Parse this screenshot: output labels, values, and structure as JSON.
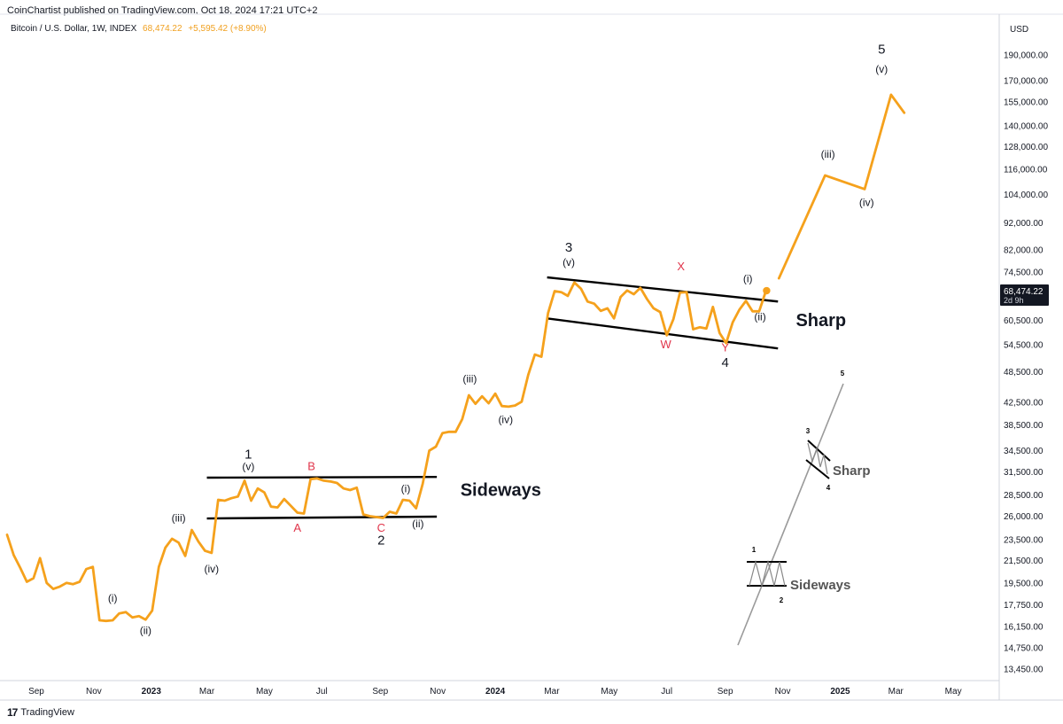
{
  "header": {
    "published": "CoinChartist published on TradingView.com, Oct 18, 2024 17:21 UTC+2",
    "symbol": "Bitcoin / U.S. Dollar, 1W, INDEX",
    "price": "68,474.22",
    "change": "+5,595.42 (+8.90%)"
  },
  "footer": {
    "brand": "TradingView",
    "brand_mark": "17"
  },
  "colors": {
    "price_line": "#f5a11c",
    "wave_red": "#e0344a",
    "ink": "#131722"
  },
  "chart_data": {
    "type": "line",
    "y_scale": "log",
    "y_axis_title": "USD",
    "ylim": [
      12800,
      205000
    ],
    "xlim": [
      "2022-08-01",
      "2025-06-15"
    ],
    "y_ticks": [
      13450,
      14750,
      16150,
      17750,
      19500,
      21500,
      23500,
      26000,
      28500,
      31500,
      34500,
      38500,
      42500,
      48500,
      54500,
      60500,
      74500,
      82000,
      92000,
      104000,
      116000,
      128000,
      140000,
      155000,
      170000,
      190000
    ],
    "x_ticks": [
      {
        "date": "2022-09-01",
        "label": "Sep"
      },
      {
        "date": "2022-11-01",
        "label": "Nov"
      },
      {
        "date": "2023-01-01",
        "label": "2023"
      },
      {
        "date": "2023-03-01",
        "label": "Mar"
      },
      {
        "date": "2023-05-01",
        "label": "May"
      },
      {
        "date": "2023-07-01",
        "label": "Jul"
      },
      {
        "date": "2023-09-01",
        "label": "Sep"
      },
      {
        "date": "2023-11-01",
        "label": "Nov"
      },
      {
        "date": "2024-01-01",
        "label": "2024"
      },
      {
        "date": "2024-03-01",
        "label": "Mar"
      },
      {
        "date": "2024-05-01",
        "label": "May"
      },
      {
        "date": "2024-07-01",
        "label": "Jul"
      },
      {
        "date": "2024-09-01",
        "label": "Sep"
      },
      {
        "date": "2024-11-01",
        "label": "Nov"
      },
      {
        "date": "2025-01-01",
        "label": "2025"
      },
      {
        "date": "2025-03-01",
        "label": "Mar"
      },
      {
        "date": "2025-05-01",
        "label": "May"
      }
    ],
    "last_price_label": "68,474.22",
    "last_price_countdown": "2d 9h",
    "series": [
      {
        "role": "price",
        "points": [
          [
            "2022-08-01",
            24000
          ],
          [
            "2022-08-08",
            22000
          ],
          [
            "2022-08-15",
            20800
          ],
          [
            "2022-08-22",
            19600
          ],
          [
            "2022-08-29",
            19900
          ],
          [
            "2022-09-05",
            21700
          ],
          [
            "2022-09-12",
            19500
          ],
          [
            "2022-09-19",
            19000
          ],
          [
            "2022-09-26",
            19200
          ],
          [
            "2022-10-03",
            19500
          ],
          [
            "2022-10-10",
            19400
          ],
          [
            "2022-10-17",
            19600
          ],
          [
            "2022-10-24",
            20700
          ],
          [
            "2022-10-31",
            20900
          ],
          [
            "2022-11-07",
            16600
          ],
          [
            "2022-11-14",
            16550
          ],
          [
            "2022-11-21",
            16600
          ],
          [
            "2022-11-28",
            17100
          ],
          [
            "2022-12-05",
            17200
          ],
          [
            "2022-12-12",
            16800
          ],
          [
            "2022-12-19",
            16900
          ],
          [
            "2022-12-26",
            16650
          ],
          [
            "2023-01-02",
            17300
          ],
          [
            "2023-01-09",
            20900
          ],
          [
            "2023-01-16",
            22700
          ],
          [
            "2023-01-23",
            23600
          ],
          [
            "2023-01-30",
            23200
          ],
          [
            "2023-02-06",
            21900
          ],
          [
            "2023-02-13",
            24500
          ],
          [
            "2023-02-20",
            23300
          ],
          [
            "2023-02-27",
            22400
          ],
          [
            "2023-03-06",
            22200
          ],
          [
            "2023-03-13",
            27900
          ],
          [
            "2023-03-20",
            27800
          ],
          [
            "2023-03-27",
            28100
          ],
          [
            "2023-04-03",
            28300
          ],
          [
            "2023-04-10",
            30300
          ],
          [
            "2023-04-17",
            27800
          ],
          [
            "2023-04-24",
            29300
          ],
          [
            "2023-05-01",
            28800
          ],
          [
            "2023-05-08",
            27100
          ],
          [
            "2023-05-15",
            27000
          ],
          [
            "2023-05-22",
            28000
          ],
          [
            "2023-05-29",
            27200
          ],
          [
            "2023-06-05",
            26400
          ],
          [
            "2023-06-12",
            26300
          ],
          [
            "2023-06-19",
            30500
          ],
          [
            "2023-06-26",
            30600
          ],
          [
            "2023-07-03",
            30300
          ],
          [
            "2023-07-10",
            30200
          ],
          [
            "2023-07-17",
            30000
          ],
          [
            "2023-07-24",
            29300
          ],
          [
            "2023-07-31",
            29100
          ],
          [
            "2023-08-07",
            29400
          ],
          [
            "2023-08-14",
            26200
          ],
          [
            "2023-08-21",
            26000
          ],
          [
            "2023-08-28",
            25900
          ],
          [
            "2023-09-04",
            25800
          ],
          [
            "2023-09-11",
            26500
          ],
          [
            "2023-09-18",
            26300
          ],
          [
            "2023-09-25",
            27900
          ],
          [
            "2023-10-02",
            27800
          ],
          [
            "2023-10-09",
            26900
          ],
          [
            "2023-10-16",
            29900
          ],
          [
            "2023-10-23",
            34500
          ],
          [
            "2023-10-30",
            35100
          ],
          [
            "2023-11-06",
            37200
          ],
          [
            "2023-11-13",
            37400
          ],
          [
            "2023-11-20",
            37400
          ],
          [
            "2023-11-27",
            39500
          ],
          [
            "2023-12-04",
            43800
          ],
          [
            "2023-12-11",
            42200
          ],
          [
            "2023-12-18",
            43600
          ],
          [
            "2023-12-25",
            42300
          ],
          [
            "2024-01-01",
            44100
          ],
          [
            "2024-01-08",
            41800
          ],
          [
            "2024-01-15",
            41700
          ],
          [
            "2024-01-22",
            41900
          ],
          [
            "2024-01-29",
            42600
          ],
          [
            "2024-02-05",
            47800
          ],
          [
            "2024-02-12",
            52200
          ],
          [
            "2024-02-19",
            51700
          ],
          [
            "2024-02-26",
            62400
          ],
          [
            "2024-03-04",
            68600
          ],
          [
            "2024-03-11",
            68300
          ],
          [
            "2024-03-18",
            67200
          ],
          [
            "2024-03-25",
            71200
          ],
          [
            "2024-04-01",
            69300
          ],
          [
            "2024-04-08",
            65600
          ],
          [
            "2024-04-15",
            65000
          ],
          [
            "2024-04-22",
            63000
          ],
          [
            "2024-04-29",
            63700
          ],
          [
            "2024-05-06",
            61000
          ],
          [
            "2024-05-13",
            66900
          ],
          [
            "2024-05-20",
            68800
          ],
          [
            "2024-05-27",
            67700
          ],
          [
            "2024-06-03",
            69600
          ],
          [
            "2024-06-10",
            66300
          ],
          [
            "2024-06-17",
            63700
          ],
          [
            "2024-06-24",
            62700
          ],
          [
            "2024-07-01",
            56700
          ],
          [
            "2024-07-08",
            60800
          ],
          [
            "2024-07-15",
            68200
          ],
          [
            "2024-07-22",
            68300
          ],
          [
            "2024-07-29",
            58200
          ],
          [
            "2024-08-05",
            58700
          ],
          [
            "2024-08-12",
            58400
          ],
          [
            "2024-08-19",
            64100
          ],
          [
            "2024-08-26",
            57300
          ],
          [
            "2024-09-02",
            54800
          ],
          [
            "2024-09-09",
            60000
          ],
          [
            "2024-09-16",
            63300
          ],
          [
            "2024-09-23",
            65800
          ],
          [
            "2024-09-30",
            62900
          ],
          [
            "2024-10-07",
            62900
          ],
          [
            "2024-10-14",
            68474
          ]
        ]
      },
      {
        "role": "projection",
        "points": [
          [
            "2024-10-28",
            72500
          ],
          [
            "2024-12-16",
            113000
          ],
          [
            "2025-01-27",
            106500
          ],
          [
            "2025-02-24",
            160000
          ],
          [
            "2025-03-10",
            148000
          ]
        ]
      }
    ],
    "channels": [
      {
        "name": "sideways-channel-top",
        "from": [
          "2023-03-01",
          30700
        ],
        "to": [
          "2023-10-31",
          30800
        ]
      },
      {
        "name": "sideways-channel-bottom",
        "from": [
          "2023-03-01",
          25750
        ],
        "to": [
          "2023-10-31",
          25950
        ]
      },
      {
        "name": "sharp-channel-top",
        "from": [
          "2024-02-25",
          72800
        ],
        "to": [
          "2024-10-27",
          65600
        ]
      },
      {
        "name": "sharp-channel-bottom",
        "from": [
          "2024-02-25",
          61000
        ],
        "to": [
          "2024-10-27",
          53600
        ]
      }
    ],
    "labels": [
      {
        "text": "(i)",
        "at": [
          "2022-11-21",
          18000
        ]
      },
      {
        "text": "(ii)",
        "at": [
          "2022-12-26",
          15650
        ]
      },
      {
        "text": "(iii)",
        "at": [
          "2023-01-30",
          25400
        ]
      },
      {
        "text": "(iv)",
        "at": [
          "2023-03-06",
          20400
        ]
      },
      {
        "text": "1",
        "at": [
          "2023-04-14",
          33300
        ],
        "size": "big"
      },
      {
        "text": "(v)",
        "at": [
          "2023-04-14",
          31700
        ]
      },
      {
        "text": "B",
        "at": [
          "2023-06-20",
          31700
        ],
        "color": "red"
      },
      {
        "text": "A",
        "at": [
          "2023-06-05",
          24300
        ],
        "color": "red"
      },
      {
        "text": "C",
        "at": [
          "2023-09-02",
          24300
        ],
        "color": "red"
      },
      {
        "text": "2",
        "at": [
          "2023-09-02",
          23000
        ],
        "size": "big"
      },
      {
        "text": "(i)",
        "at": [
          "2023-09-28",
          28800
        ]
      },
      {
        "text": "(ii)",
        "at": [
          "2023-10-11",
          24800
        ]
      },
      {
        "text": "Sideways",
        "at": [
          "2023-11-25",
          28400
        ],
        "size": "huge"
      },
      {
        "text": "(iii)",
        "at": [
          "2023-12-05",
          46300
        ]
      },
      {
        "text": "(iv)",
        "at": [
          "2024-01-12",
          38800
        ]
      },
      {
        "text": "3",
        "at": [
          "2024-03-19",
          81400
        ],
        "size": "big"
      },
      {
        "text": "(v)",
        "at": [
          "2024-03-19",
          76500
        ]
      },
      {
        "text": "X",
        "at": [
          "2024-07-16",
          75000
        ],
        "color": "red"
      },
      {
        "text": "W",
        "at": [
          "2024-06-30",
          53600
        ],
        "color": "red"
      },
      {
        "text": "Y",
        "at": [
          "2024-09-01",
          52900
        ],
        "color": "red"
      },
      {
        "text": "4",
        "at": [
          "2024-09-01",
          49500
        ],
        "size": "big"
      },
      {
        "text": "(i)",
        "at": [
          "2024-09-25",
          71300
        ]
      },
      {
        "text": "(ii)",
        "at": [
          "2024-10-08",
          60500
        ]
      },
      {
        "text": "Sharp",
        "at": [
          "2024-11-15",
          59000
        ],
        "size": "huge"
      },
      {
        "text": "(iii)",
        "at": [
          "2024-12-19",
          122000
        ]
      },
      {
        "text": "(iv)",
        "at": [
          "2025-01-29",
          99000
        ]
      },
      {
        "text": "5",
        "at": [
          "2025-02-14",
          191000
        ],
        "size": "big"
      },
      {
        "text": "(v)",
        "at": [
          "2025-02-14",
          176000
        ]
      }
    ],
    "inset": {
      "name": "wave-schematic",
      "labels": [
        "1",
        "2",
        "3",
        "4",
        "5",
        "Sideways",
        "Sharp"
      ]
    }
  }
}
